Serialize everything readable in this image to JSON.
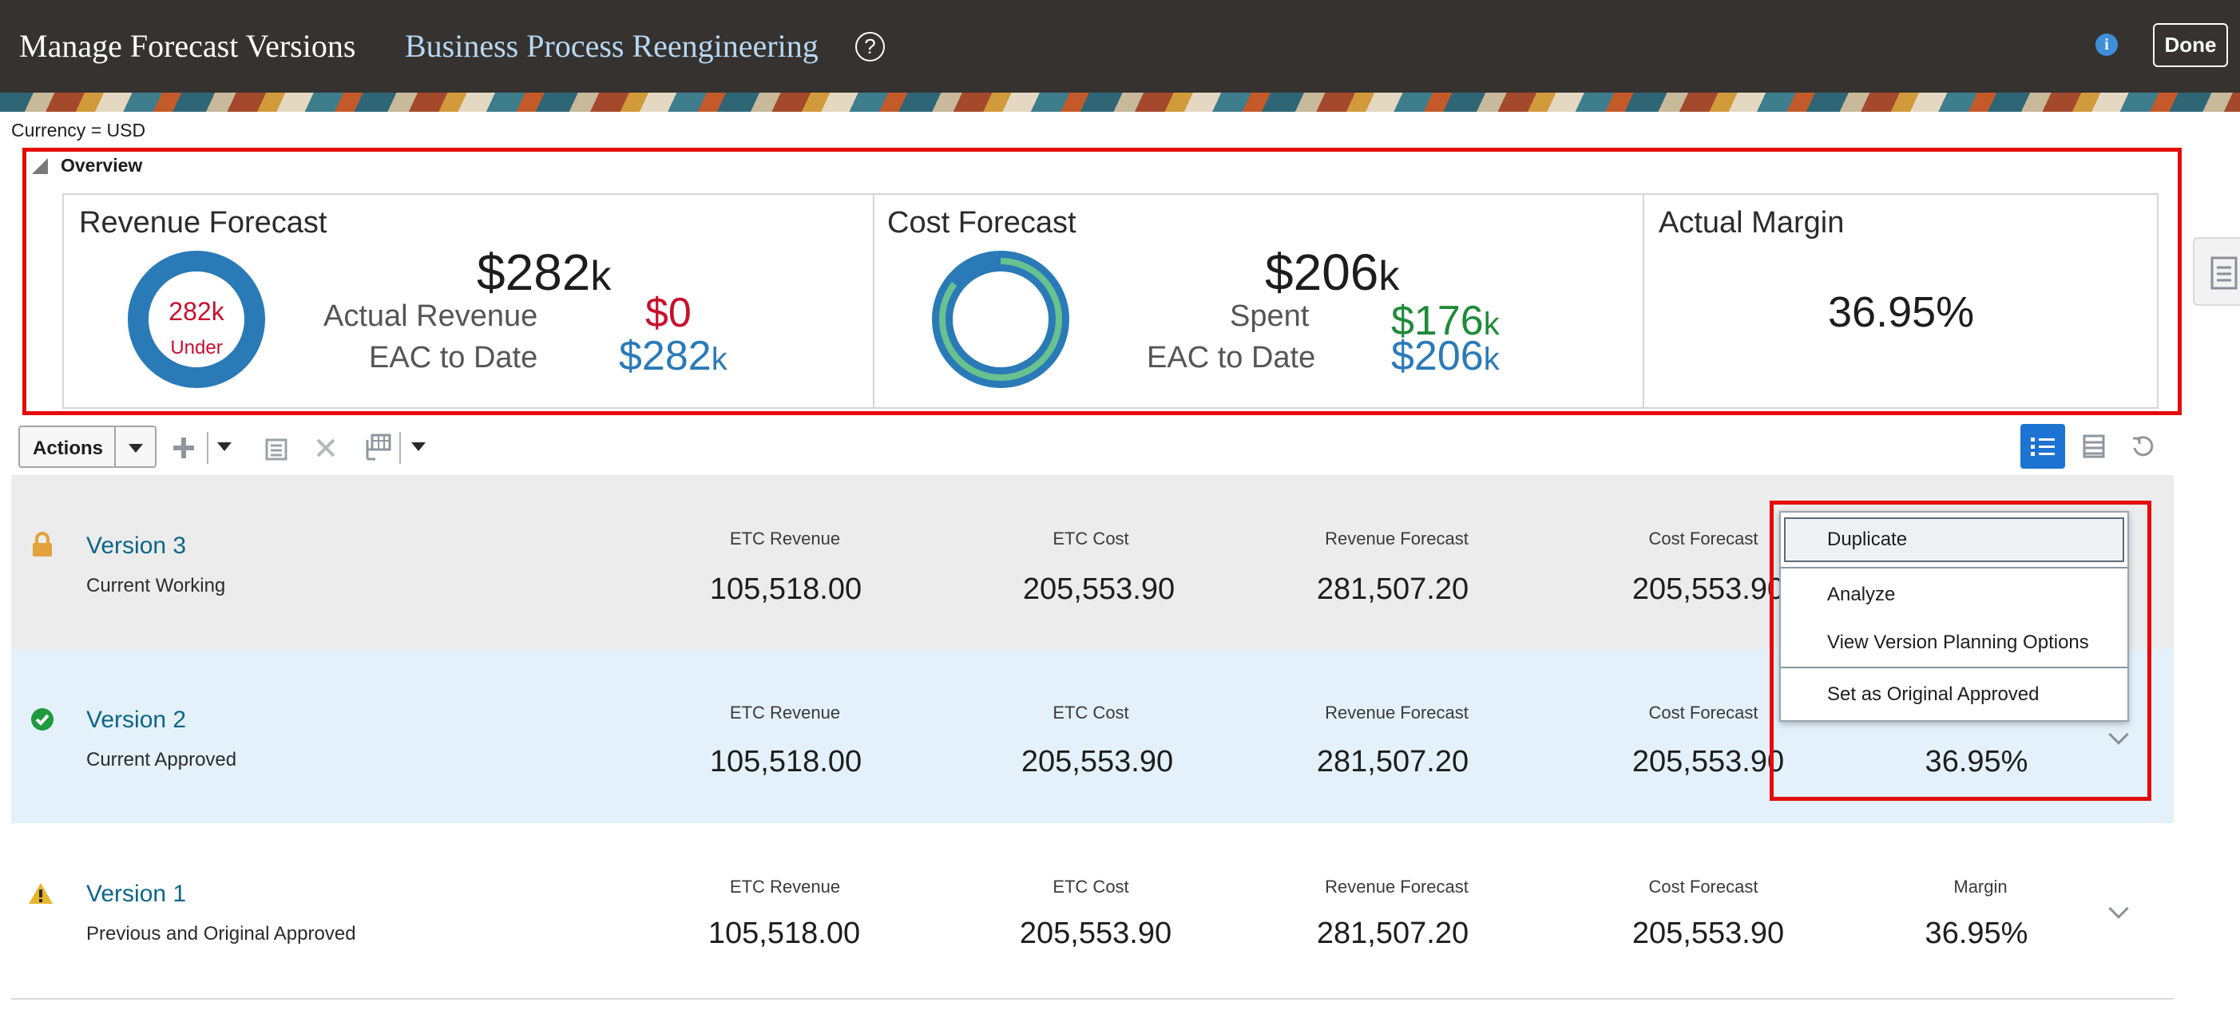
{
  "header": {
    "title": "Manage Forecast Versions",
    "project": "Business Process Reengineering",
    "help_glyph": "?",
    "info_glyph": "i",
    "done_label": "Done"
  },
  "currency_label": "Currency = USD",
  "overview": {
    "label": "Overview",
    "revenue": {
      "title": "Revenue Forecast",
      "donut_center_value": "282k",
      "donut_center_status": "Under",
      "total_value": "$282",
      "total_suffix": "k",
      "actual_label": "Actual Revenue",
      "actual_value": "$0",
      "eac_label": "EAC to Date",
      "eac_value": "$282",
      "eac_suffix": "k"
    },
    "cost": {
      "title": "Cost Forecast",
      "total_value": "$206",
      "total_suffix": "k",
      "spent_label": "Spent",
      "spent_value": "$176",
      "spent_suffix": "k",
      "eac_label": "EAC to Date",
      "eac_value": "$206",
      "eac_suffix": "k",
      "spent_fraction": 0.854
    },
    "margin": {
      "title": "Actual Margin",
      "value": "36.95%"
    }
  },
  "toolbar": {
    "actions_label": "Actions",
    "add_icon": "plus-icon",
    "copy_icon": "copy-icon",
    "delete_icon": "delete-icon",
    "columns_icon": "columns-icon",
    "list_view_icon": "list-view-icon",
    "table_view_icon": "table-view-icon",
    "refresh_icon": "refresh-icon"
  },
  "columns": [
    "ETC Revenue",
    "ETC Cost",
    "Revenue Forecast",
    "Cost Forecast",
    "Margin"
  ],
  "versions": [
    {
      "name": "Version 3",
      "status": "Current Working",
      "status_icon": "lock-icon",
      "values": [
        "105,518.00",
        "205,553.90",
        "281,507.20",
        "205,553.90"
      ]
    },
    {
      "name": "Version 2",
      "status": "Current Approved",
      "status_icon": "check-circle-icon",
      "values": [
        "105,518.00",
        "205,553.90",
        "281,507.20",
        "205,553.90",
        "36.95%"
      ]
    },
    {
      "name": "Version 1",
      "status": "Previous and Original Approved",
      "status_icon": "warning-icon",
      "values": [
        "105,518.00",
        "205,553.90",
        "281,507.20",
        "205,553.90",
        "36.95%"
      ]
    }
  ],
  "context_menu": {
    "items": [
      "Duplicate",
      "Analyze",
      "View Version Planning Options",
      "Set as Original Approved"
    ],
    "highlighted": "Duplicate"
  },
  "colors": {
    "header_bg": "#353230",
    "link": "#0d6687",
    "accent_blue": "#2a7ab8",
    "negative_red": "#c8102e",
    "positive_green": "#1f8a3a",
    "highlight_red": "#e40b0b",
    "row_grey": "#ececec",
    "row_blue": "#e4f1fb"
  }
}
